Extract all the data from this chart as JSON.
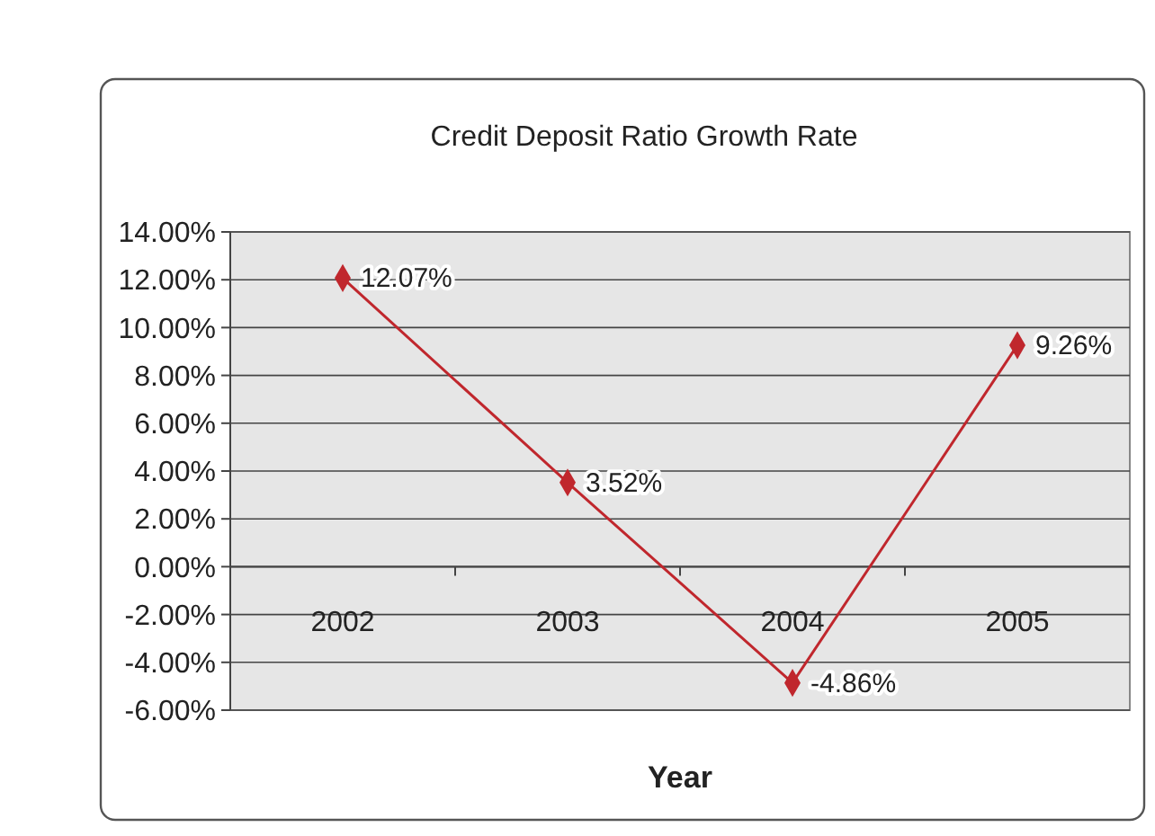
{
  "chart_data": {
    "type": "line",
    "title": "Credit Deposit Ratio Growth Rate",
    "xlabel": "Year",
    "categories": [
      "2002",
      "2003",
      "2004",
      "2005"
    ],
    "series": [
      {
        "color": "#c0272d",
        "values": [
          12.07,
          3.52,
          -4.86,
          9.26
        ],
        "value_labels": [
          "12.07%",
          "3.52%",
          "-4.86%",
          "9.26%"
        ]
      }
    ],
    "ylim": [
      -6,
      14
    ],
    "yticks": [
      {
        "value": -6,
        "label": "-6.00%"
      },
      {
        "value": -4,
        "label": "-4.00%"
      },
      {
        "value": -2,
        "label": "-2.00%"
      },
      {
        "value": 0,
        "label": "0.00%"
      },
      {
        "value": 2,
        "label": "2.00%"
      },
      {
        "value": 4,
        "label": "4.00%"
      },
      {
        "value": 6,
        "label": "6.00%"
      },
      {
        "value": 8,
        "label": "8.00%"
      },
      {
        "value": 10,
        "label": "10.00%"
      },
      {
        "value": 12,
        "label": "12.00%"
      },
      {
        "value": 14,
        "label": "14.00%"
      }
    ],
    "grid": "y",
    "marker": "diamond",
    "line_style": "solid"
  }
}
